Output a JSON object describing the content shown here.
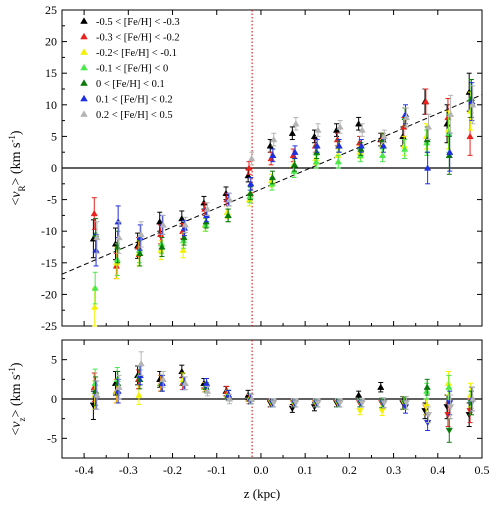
{
  "colors": {
    "-0.5 < [Fe/H] < -0.3": "#000000",
    "-0.3 < [Fe/H] < -0.2": "#e8211c",
    "-0.2< [Fe/H] < -0.1": "#f2f200",
    "-0.1 < [Fe/H] < 0": "#4be84b",
    "0 < [Fe/H] < 0.1": "#0a7a0a",
    "0.1 < [Fe/H] < 0.2": "#1f2fe0",
    "0.2 < [Fe/H] < 0.5": "#b4b4b4"
  },
  "chart_data": [
    {
      "type": "scatter",
      "panel": "top",
      "xlabel": "z (kpc)",
      "ylabel": "<v_R> (km s^-1)",
      "ylabel_parts": {
        "open": "<",
        "var": "v",
        "sub": "R",
        "close": "> (km s",
        "sup": "-1",
        "end": ")"
      },
      "xlim": [
        -0.45,
        0.5
      ],
      "ylim": [
        -25,
        25
      ],
      "xticks": [
        -0.4,
        -0.3,
        -0.2,
        -0.1,
        0.0,
        0.1,
        0.2,
        0.3,
        0.4,
        0.5
      ],
      "xtick_labels": [
        "-0.4",
        "-0.3",
        "-0.2",
        "-0.1",
        "0.0",
        "0.1",
        "0.2",
        "0.3",
        "0.4",
        "0.5"
      ],
      "yticks": [
        -25,
        -20,
        -15,
        -10,
        -5,
        0,
        5,
        10,
        15,
        20,
        25
      ],
      "ytick_labels": [
        "-25",
        "-20",
        "-15",
        "-10",
        "-5",
        "0",
        "5",
        "10",
        "15",
        "20",
        "25"
      ],
      "legend_position": "top-left",
      "reference_lines": {
        "horizontal_y": 0,
        "vertical_x": -0.02
      },
      "fit_line": {
        "x": [
          -0.45,
          0.5
        ],
        "y": [
          -16.8,
          11.6
        ],
        "style": "dashed"
      },
      "series": [
        {
          "name": "-0.5 < [Fe/H] < -0.3",
          "x": [
            -0.375,
            -0.325,
            -0.275,
            -0.225,
            -0.175,
            -0.125,
            -0.075,
            -0.025,
            0.025,
            0.075,
            0.125,
            0.175,
            0.225,
            0.275,
            0.325,
            0.375,
            0.425,
            0.475
          ],
          "y": [
            -11.2,
            -12.0,
            -12.3,
            -8.5,
            -8.0,
            -5.5,
            -4.0,
            -1.2,
            3.5,
            5.5,
            5.0,
            6.0,
            7.0,
            4.5,
            5.0,
            10.5,
            7.0,
            12.0
          ],
          "err": [
            3.0,
            2.5,
            2.0,
            1.5,
            1.2,
            1.0,
            1.0,
            1.0,
            1.0,
            1.0,
            1.0,
            1.0,
            1.0,
            1.0,
            1.5,
            2.0,
            3.0,
            3.0
          ]
        },
        {
          "name": "-0.3 < [Fe/H] < -0.2",
          "x": [
            -0.375,
            -0.325,
            -0.275,
            -0.225,
            -0.175,
            -0.125,
            -0.075,
            -0.025,
            0.025,
            0.075,
            0.125,
            0.175,
            0.225,
            0.275,
            0.325,
            0.375,
            0.425,
            0.475
          ],
          "y": [
            -7.2,
            -15.5,
            -12.5,
            -10.5,
            -10.0,
            -6.5,
            -5.0,
            0.0,
            1.5,
            2.0,
            3.5,
            4.5,
            4.0,
            4.5,
            6.5,
            10.5,
            8.0,
            5.0
          ],
          "err": [
            2.5,
            2.0,
            1.5,
            1.5,
            1.2,
            1.0,
            1.0,
            1.0,
            1.0,
            1.0,
            1.0,
            1.0,
            1.0,
            1.0,
            1.5,
            2.0,
            3.0,
            3.0
          ]
        },
        {
          "name": "-0.2< [Fe/H] < -0.1",
          "x": [
            -0.375,
            -0.325,
            -0.275,
            -0.225,
            -0.175,
            -0.125,
            -0.075,
            -0.025,
            0.025,
            0.075,
            0.125,
            0.175,
            0.225,
            0.275,
            0.325,
            0.375,
            0.425,
            0.475
          ],
          "y": [
            -22.0,
            -15.0,
            -13.5,
            -13.0,
            -13.0,
            -9.0,
            -7.0,
            -5.0,
            -2.0,
            0.5,
            1.5,
            2.0,
            2.5,
            3.5,
            3.5,
            5.0,
            6.0,
            9.0
          ],
          "err": [
            3.0,
            2.5,
            2.0,
            1.5,
            1.2,
            1.0,
            1.0,
            1.0,
            1.0,
            1.0,
            1.0,
            1.0,
            1.0,
            1.0,
            1.5,
            2.0,
            3.0,
            3.0
          ]
        },
        {
          "name": "-0.1 < [Fe/H] < 0",
          "x": [
            -0.375,
            -0.325,
            -0.275,
            -0.225,
            -0.175,
            -0.125,
            -0.075,
            -0.025,
            0.025,
            0.075,
            0.125,
            0.175,
            0.225,
            0.275,
            0.325,
            0.375,
            0.425,
            0.475
          ],
          "y": [
            -19.0,
            -14.5,
            -13.0,
            -12.0,
            -11.5,
            -9.0,
            -7.5,
            -4.5,
            -2.5,
            -0.5,
            1.0,
            1.0,
            2.0,
            2.0,
            3.0,
            4.0,
            5.5,
            11.0
          ],
          "err": [
            2.5,
            2.5,
            2.0,
            1.5,
            1.2,
            1.0,
            1.0,
            1.0,
            1.0,
            1.0,
            1.0,
            1.0,
            1.0,
            1.0,
            1.5,
            2.0,
            3.0,
            3.0
          ]
        },
        {
          "name": "0 < [Fe/H] < 0.1",
          "x": [
            -0.375,
            -0.325,
            -0.275,
            -0.225,
            -0.175,
            -0.125,
            -0.075,
            -0.025,
            0.025,
            0.075,
            0.125,
            0.175,
            0.225,
            0.275,
            0.325,
            0.375,
            0.425,
            0.475
          ],
          "y": [
            -10.5,
            -12.5,
            -13.5,
            -12.5,
            -11.0,
            -8.5,
            -7.5,
            -4.0,
            -1.5,
            0.5,
            2.5,
            3.5,
            3.0,
            4.5,
            8.0,
            4.5,
            2.0,
            11.0
          ],
          "err": [
            2.5,
            2.5,
            2.0,
            1.5,
            1.2,
            1.0,
            1.0,
            1.0,
            1.0,
            1.0,
            1.0,
            1.0,
            1.0,
            1.0,
            1.5,
            2.0,
            3.0,
            3.0
          ]
        },
        {
          "name": "0.1 < [Fe/H] < 0.2",
          "x": [
            -0.375,
            -0.325,
            -0.275,
            -0.225,
            -0.175,
            -0.125,
            -0.075,
            -0.025,
            0.025,
            0.075,
            0.125,
            0.175,
            0.225,
            0.275,
            0.325,
            0.375,
            0.425,
            0.475
          ],
          "y": [
            -13.0,
            -8.5,
            -11.0,
            -9.0,
            -9.5,
            -7.5,
            -5.0,
            -2.5,
            2.0,
            2.5,
            3.5,
            3.5,
            3.5,
            3.5,
            8.5,
            0.0,
            2.5,
            10.5
          ],
          "err": [
            2.5,
            2.5,
            2.0,
            1.5,
            1.2,
            1.0,
            1.0,
            1.0,
            1.0,
            1.0,
            1.0,
            1.0,
            1.0,
            1.0,
            1.5,
            2.5,
            3.0,
            3.0
          ]
        },
        {
          "name": "0.2 < [Fe/H] < 0.5",
          "x": [
            -0.375,
            -0.325,
            -0.275,
            -0.225,
            -0.175,
            -0.125,
            -0.075,
            -0.025,
            0.025,
            0.075,
            0.125,
            0.175,
            0.225,
            0.275,
            0.325,
            0.375,
            0.425,
            0.475
          ],
          "y": [
            -11.0,
            -11.0,
            -10.5,
            -9.0,
            -9.0,
            -6.5,
            -5.0,
            1.5,
            4.5,
            7.0,
            6.0,
            6.5,
            6.0,
            5.0,
            8.0,
            6.5,
            8.5,
            10.0
          ],
          "err": [
            2.5,
            2.5,
            2.0,
            1.5,
            1.2,
            1.0,
            1.0,
            1.0,
            1.0,
            1.0,
            1.0,
            1.0,
            1.0,
            1.0,
            1.5,
            2.0,
            3.0,
            3.0
          ]
        }
      ]
    },
    {
      "type": "scatter",
      "panel": "bottom",
      "ylabel": "<v_z> (km s^-1)",
      "ylabel_parts": {
        "open": "<",
        "var": "v",
        "sub": "z",
        "close": "> (km s",
        "sup": "-1",
        "end": ")"
      },
      "xlim": [
        -0.45,
        0.5
      ],
      "ylim": [
        -7.5,
        7.5
      ],
      "yticks": [
        -5,
        0,
        5
      ],
      "ytick_labels": [
        "-5",
        "0",
        "5"
      ],
      "reference_lines": {
        "horizontal_y": 0,
        "vertical_x": -0.02
      },
      "series": [
        {
          "name": "-0.5 < [Fe/H] < -0.3",
          "x": [
            -0.375,
            -0.325,
            -0.275,
            -0.225,
            -0.175,
            -0.125,
            -0.075,
            -0.025,
            0.025,
            0.075,
            0.125,
            0.175,
            0.225,
            0.275,
            0.325,
            0.375,
            0.425,
            0.475
          ],
          "y": [
            -0.8,
            2.0,
            3.0,
            2.5,
            3.5,
            2.0,
            1.0,
            0.5,
            -0.5,
            -1.2,
            -1.0,
            -0.5,
            0.5,
            1.5,
            -0.5,
            -1.5,
            -1.0,
            -2.0
          ],
          "err": [
            1.8,
            1.5,
            1.2,
            1.0,
            0.8,
            0.6,
            0.6,
            0.6,
            0.5,
            0.5,
            0.5,
            0.5,
            0.5,
            0.6,
            0.8,
            1.0,
            1.5,
            1.5
          ]
        },
        {
          "name": "-0.3 < [Fe/H] < -0.2",
          "x": [
            -0.375,
            -0.325,
            -0.275,
            -0.225,
            -0.175,
            -0.125,
            -0.075,
            -0.025,
            0.025,
            0.075,
            0.125,
            0.175,
            0.225,
            0.275,
            0.325,
            0.375,
            0.425,
            0.475
          ],
          "y": [
            1.5,
            1.0,
            2.5,
            2.0,
            2.0,
            1.5,
            1.0,
            0.0,
            -0.5,
            -0.5,
            -0.5,
            -0.5,
            -0.5,
            -0.5,
            -0.5,
            -1.0,
            -2.0,
            -1.5
          ],
          "err": [
            1.8,
            1.5,
            1.2,
            1.0,
            0.8,
            0.6,
            0.6,
            0.6,
            0.5,
            0.5,
            0.5,
            0.5,
            0.5,
            0.6,
            0.8,
            1.0,
            1.5,
            1.5
          ]
        },
        {
          "name": "-0.2< [Fe/H] < -0.1",
          "x": [
            -0.375,
            -0.325,
            -0.275,
            -0.225,
            -0.175,
            -0.125,
            -0.075,
            -0.025,
            0.025,
            0.075,
            0.125,
            0.175,
            0.225,
            0.275,
            0.325,
            0.375,
            0.425,
            0.475
          ],
          "y": [
            0.5,
            1.0,
            0.5,
            2.0,
            2.5,
            1.5,
            0.5,
            0.0,
            -0.5,
            -0.5,
            -0.5,
            -0.5,
            -1.5,
            -1.5,
            -0.5,
            -1.0,
            2.0,
            0.5
          ],
          "err": [
            1.8,
            1.5,
            1.2,
            1.0,
            0.8,
            0.6,
            0.6,
            0.6,
            0.5,
            0.5,
            0.5,
            0.5,
            0.5,
            0.6,
            0.8,
            1.0,
            1.5,
            1.5
          ]
        },
        {
          "name": "-0.1 < [Fe/H] < 0",
          "x": [
            -0.375,
            -0.325,
            -0.275,
            -0.225,
            -0.175,
            -0.125,
            -0.075,
            -0.025,
            0.025,
            0.075,
            0.125,
            0.175,
            0.225,
            0.275,
            0.325,
            0.375,
            0.425,
            0.475
          ],
          "y": [
            2.0,
            2.5,
            3.0,
            2.0,
            2.0,
            1.5,
            0.5,
            0.0,
            -0.5,
            -0.5,
            -0.5,
            -0.5,
            -0.5,
            -0.5,
            -0.5,
            1.0,
            1.5,
            -0.5
          ],
          "err": [
            1.8,
            1.5,
            1.2,
            1.0,
            0.8,
            0.6,
            0.6,
            0.6,
            0.5,
            0.5,
            0.5,
            0.5,
            0.5,
            0.6,
            0.8,
            1.0,
            1.5,
            1.5
          ]
        },
        {
          "name": "0 < [Fe/H] < 0.1",
          "x": [
            -0.375,
            -0.325,
            -0.275,
            -0.225,
            -0.175,
            -0.125,
            -0.075,
            -0.025,
            0.025,
            0.075,
            0.125,
            0.175,
            0.225,
            0.275,
            0.325,
            0.375,
            0.425,
            0.475
          ],
          "y": [
            1.0,
            2.0,
            2.5,
            2.0,
            2.0,
            1.5,
            0.5,
            0.0,
            -0.5,
            -0.5,
            -0.5,
            -0.5,
            -0.5,
            -0.5,
            -0.5,
            1.5,
            -4.0,
            -0.5
          ],
          "err": [
            1.8,
            1.5,
            1.2,
            1.0,
            0.8,
            0.6,
            0.6,
            0.6,
            0.5,
            0.5,
            0.5,
            0.5,
            0.5,
            0.6,
            0.8,
            1.0,
            1.5,
            1.5
          ]
        },
        {
          "name": "0.1 < [Fe/H] < 0.2",
          "x": [
            -0.375,
            -0.325,
            -0.275,
            -0.225,
            -0.175,
            -0.125,
            -0.075,
            -0.025,
            0.025,
            0.075,
            0.125,
            0.175,
            0.225,
            0.275,
            0.325,
            0.375,
            0.425,
            0.475
          ],
          "y": [
            0.5,
            1.0,
            3.0,
            2.0,
            2.0,
            2.0,
            0.5,
            0.0,
            -0.5,
            -0.5,
            -0.5,
            -0.5,
            -0.5,
            -0.5,
            -1.0,
            -3.0,
            -0.5,
            0.0
          ],
          "err": [
            1.8,
            1.5,
            1.2,
            1.0,
            0.8,
            0.6,
            0.6,
            0.6,
            0.5,
            0.5,
            0.5,
            0.5,
            0.5,
            0.6,
            0.8,
            1.0,
            1.5,
            1.5
          ]
        },
        {
          "name": "0.2 < [Fe/H] < 0.5",
          "x": [
            -0.375,
            -0.325,
            -0.275,
            -0.225,
            -0.175,
            -0.125,
            -0.075,
            -0.025,
            0.025,
            0.075,
            0.125,
            0.175,
            0.225,
            0.275,
            0.325,
            0.375,
            0.425,
            0.475
          ],
          "y": [
            0.5,
            1.5,
            4.5,
            2.5,
            2.0,
            1.0,
            0.0,
            0.0,
            -0.5,
            -0.5,
            -0.5,
            -0.5,
            -0.5,
            -0.5,
            -0.5,
            -2.0,
            -1.0,
            0.0
          ],
          "err": [
            1.8,
            1.5,
            1.5,
            1.0,
            0.8,
            0.6,
            0.6,
            0.6,
            0.5,
            0.5,
            0.5,
            0.5,
            0.5,
            0.6,
            0.8,
            1.0,
            1.5,
            1.5
          ]
        }
      ]
    }
  ]
}
